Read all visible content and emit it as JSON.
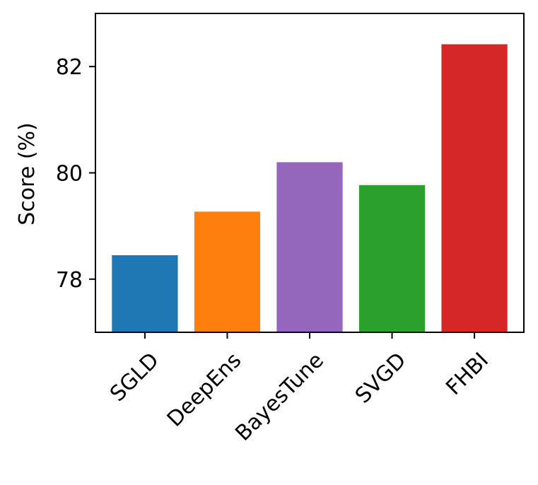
{
  "chart_data": {
    "type": "bar",
    "title": "",
    "xlabel": "",
    "ylabel": "Score (%)",
    "categories": [
      "SGLD",
      "DeepEns",
      "BayesTune",
      "SVGD",
      "FHBI"
    ],
    "values": [
      78.45,
      79.27,
      80.2,
      79.77,
      82.42
    ],
    "colors": [
      "#1f77b4",
      "#ff7f0e",
      "#9467bd",
      "#2ca02c",
      "#d62728"
    ],
    "ylim": [
      77.0,
      83.0
    ],
    "yticks": [
      78,
      80,
      82
    ],
    "ytick_labels": [
      "78",
      "80",
      "82"
    ],
    "grid": false,
    "legend": "none"
  }
}
